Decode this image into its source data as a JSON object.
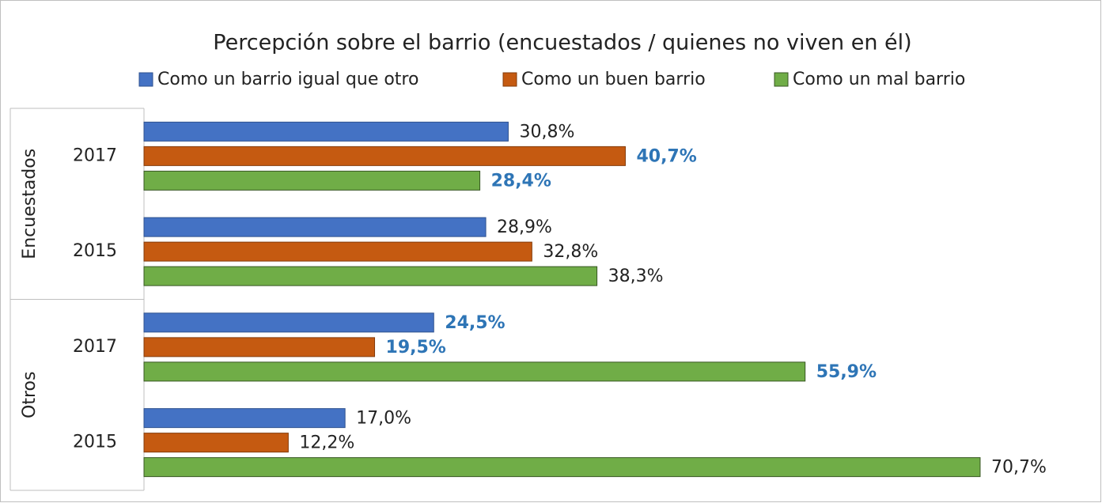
{
  "chart_data": {
    "type": "bar",
    "orientation": "horizontal",
    "title": "Percepción sobre el barrio (encuestados / quienes no viven en él)",
    "categories": [
      "2017",
      "2015",
      "2017",
      "2015"
    ],
    "groups": [
      {
        "label": "Encuestados",
        "size": 2
      },
      {
        "label": "Otros",
        "size": 2
      }
    ],
    "series": [
      {
        "name": "Como un barrio igual que otro",
        "color": "#4472c4",
        "border": "#2f528f",
        "values": [
          30.8,
          28.9,
          24.5,
          17.0
        ],
        "value_labels": [
          "30,8%",
          "28,9%",
          "24,5%",
          "17,0%"
        ],
        "highlighted": [
          false,
          false,
          true,
          false
        ]
      },
      {
        "name": "Como un buen barrio",
        "color": "#c55a11",
        "border": "#843c0c",
        "values": [
          40.7,
          32.8,
          19.5,
          12.2
        ],
        "value_labels": [
          "40,7%",
          "32,8%",
          "19,5%",
          "12,2%"
        ],
        "highlighted": [
          true,
          false,
          true,
          false
        ]
      },
      {
        "name": "Como un mal barrio",
        "color": "#70ad47",
        "border": "#385723",
        "values": [
          28.4,
          38.3,
          55.9,
          70.7
        ],
        "value_labels": [
          "28,4%",
          "38,3%",
          "55,9%",
          "70,7%"
        ],
        "highlighted": [
          true,
          false,
          true,
          false
        ]
      }
    ],
    "xlim": [
      0,
      80
    ],
    "highlight_color": "#2e75b6",
    "legend": "top"
  }
}
